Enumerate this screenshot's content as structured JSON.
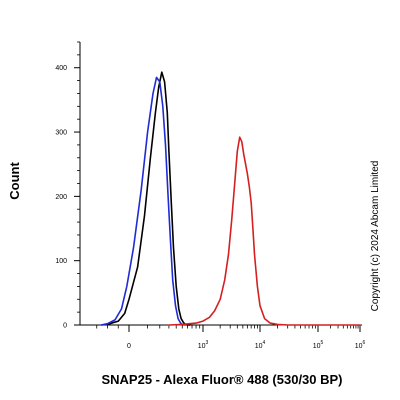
{
  "chart_data": {
    "type": "line",
    "title": "",
    "xlabel": "SNAP25 - Alexa Fluor® 488 (530/30 BP)",
    "ylabel": "Count",
    "x_scale": "biexponential",
    "xlim": [
      -400,
      1000000
    ],
    "ylim": [
      0,
      440
    ],
    "grid": false,
    "legend": "none",
    "y_ticks": [
      {
        "value": 0,
        "label": "0"
      },
      {
        "value": 100,
        "label": "100"
      },
      {
        "value": 200,
        "label": "200"
      },
      {
        "value": 300,
        "label": "300"
      },
      {
        "value": 400,
        "label": "400"
      }
    ],
    "x_ticks": [
      {
        "value": 0,
        "base": "0",
        "exp": ""
      },
      {
        "value": 1000,
        "base": "10",
        "exp": "3"
      },
      {
        "value": 10000,
        "base": "10",
        "exp": "4"
      },
      {
        "value": 100000,
        "base": "10",
        "exp": "5"
      },
      {
        "value": 1000000,
        "base": "10",
        "exp": "6"
      }
    ],
    "series": [
      {
        "color": "#000000",
        "x": [
          -250,
          -180,
          -100,
          -40,
          0,
          40,
          80,
          120,
          160,
          190,
          220,
          250,
          280,
          300,
          330,
          360,
          400,
          440,
          480,
          520,
          560,
          600,
          650
        ],
        "y": [
          0,
          2,
          6,
          18,
          40,
          90,
          170,
          260,
          330,
          370,
          393,
          378,
          330,
          270,
          190,
          120,
          60,
          25,
          10,
          4,
          1,
          0,
          0
        ]
      },
      {
        "color": "#1f2bd6",
        "x": [
          -260,
          -200,
          -130,
          -70,
          -20,
          20,
          60,
          100,
          140,
          170,
          200,
          230,
          260,
          290,
          320,
          350,
          390,
          430,
          470,
          510
        ],
        "y": [
          0,
          2,
          8,
          25,
          60,
          120,
          210,
          300,
          360,
          385,
          378,
          340,
          280,
          200,
          130,
          70,
          30,
          10,
          3,
          0
        ]
      },
      {
        "color": "#d42020",
        "x": [
          300,
          500,
          800,
          1000,
          1300,
          1600,
          2000,
          2400,
          2800,
          3200,
          3600,
          4000,
          4400,
          4800,
          5200,
          5600,
          6000,
          6500,
          7000,
          7500,
          8000,
          9000,
          10000,
          12000,
          15000,
          20000,
          30000,
          50000,
          100000,
          300000,
          1000000
        ],
        "y": [
          0,
          1,
          3,
          6,
          12,
          22,
          40,
          70,
          110,
          165,
          220,
          270,
          292,
          285,
          265,
          250,
          235,
          215,
          190,
          150,
          110,
          60,
          30,
          10,
          3,
          1,
          0,
          0,
          0,
          0,
          0
        ]
      }
    ],
    "annotations": [
      "Copyright (c) 2024 Abcam Limited"
    ]
  }
}
